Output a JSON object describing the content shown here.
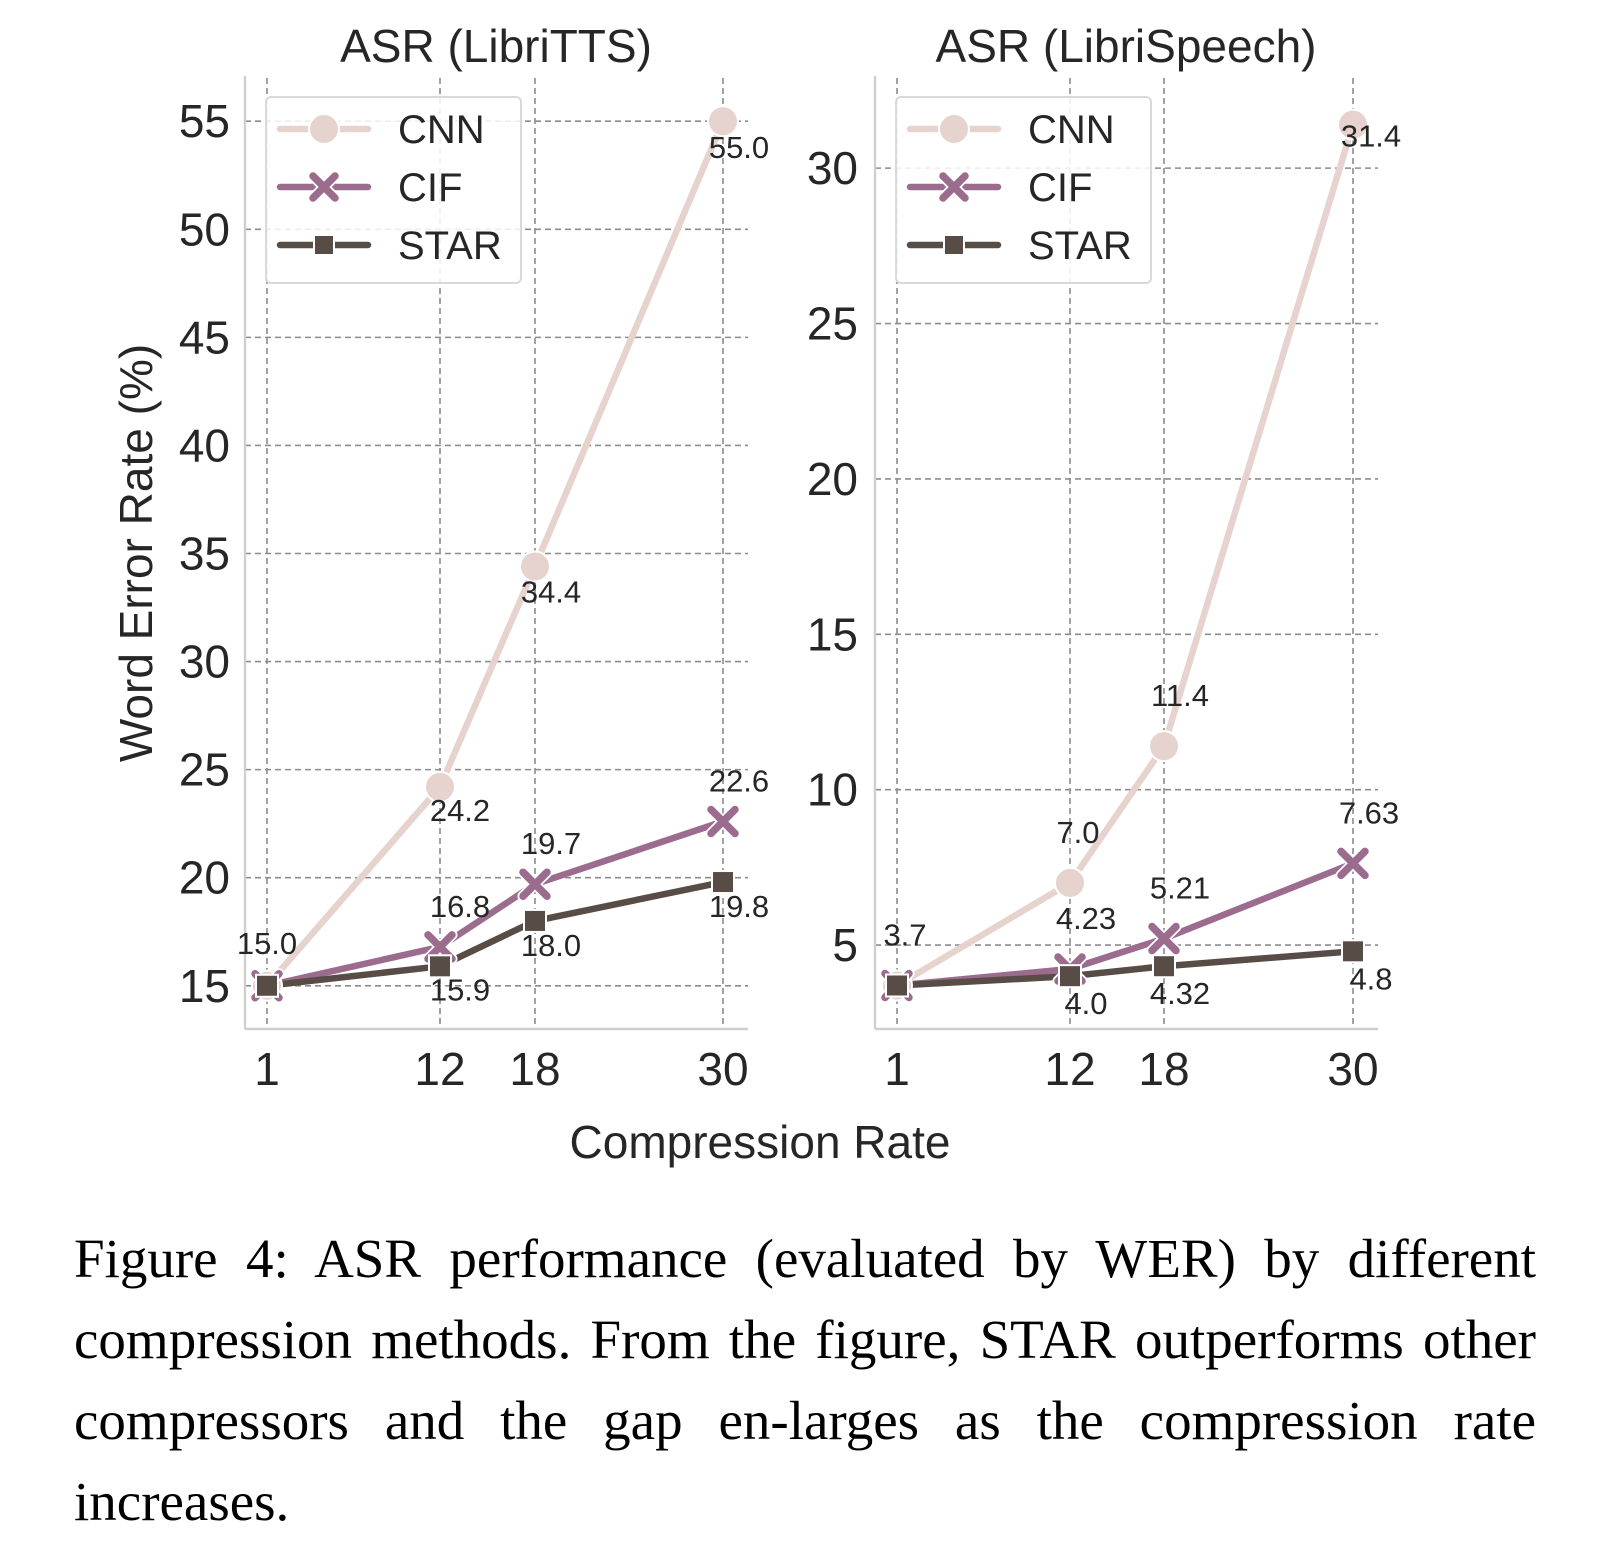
{
  "chart_data": [
    {
      "type": "line",
      "title": "ASR (LibriTTS)",
      "ylabel": "Word Error Rate (%)",
      "xlabel": "Compression Rate",
      "x": [
        1,
        12,
        18,
        30
      ],
      "x_tick_labels": [
        "1",
        "12",
        "18",
        "30"
      ],
      "ylim": [
        13,
        57
      ],
      "y_ticks": [
        15,
        20,
        25,
        30,
        35,
        40,
        45,
        50,
        55
      ],
      "grid": true,
      "legend_position": "upper-left",
      "series": [
        {
          "name": "CNN",
          "marker": "circle",
          "color": "#e6d3ce",
          "values": [
            15.0,
            24.2,
            34.4,
            55.0
          ],
          "labels": [
            "15.0",
            "24.2",
            "34.4",
            "55.0"
          ]
        },
        {
          "name": "CIF",
          "marker": "x",
          "color": "#9c6c8f",
          "values": [
            15.0,
            16.8,
            19.7,
            22.6
          ],
          "labels": [
            "",
            "16.8",
            "19.7",
            "22.6"
          ]
        },
        {
          "name": "STAR",
          "marker": "square",
          "color": "#574d46",
          "values": [
            15.0,
            15.9,
            18.0,
            19.8
          ],
          "labels": [
            "",
            "15.9",
            "18.0",
            "19.8"
          ]
        }
      ]
    },
    {
      "type": "line",
      "title": "ASR (LibriSpeech)",
      "ylabel": "",
      "xlabel": "Compression Rate",
      "x": [
        1,
        12,
        18,
        30
      ],
      "x_tick_labels": [
        "1",
        "12",
        "18",
        "30"
      ],
      "ylim": [
        2.3,
        32.9
      ],
      "y_ticks": [
        5,
        10,
        15,
        20,
        25,
        30
      ],
      "grid": true,
      "legend_position": "upper-left",
      "series": [
        {
          "name": "CNN",
          "marker": "circle",
          "color": "#e6d3ce",
          "values": [
            3.7,
            7.0,
            11.4,
            31.4
          ],
          "labels": [
            "3.7",
            "7.0",
            "11.4",
            "31.4"
          ]
        },
        {
          "name": "CIF",
          "marker": "x",
          "color": "#9c6c8f",
          "values": [
            3.7,
            4.23,
            5.21,
            7.63
          ],
          "labels": [
            "",
            "4.23",
            "5.21",
            "7.63"
          ]
        },
        {
          "name": "STAR",
          "marker": "square",
          "color": "#574d46",
          "values": [
            3.7,
            4.0,
            4.32,
            4.8
          ],
          "labels": [
            "",
            "4.0",
            "4.32",
            "4.8"
          ]
        }
      ]
    }
  ],
  "shared_xlabel": "Compression Rate",
  "caption": "Figure 4: ASR performance (evaluated by WER) by different compression methods. From the figure, STAR outperforms other compressors and the gap en-larges as the compression rate increases."
}
